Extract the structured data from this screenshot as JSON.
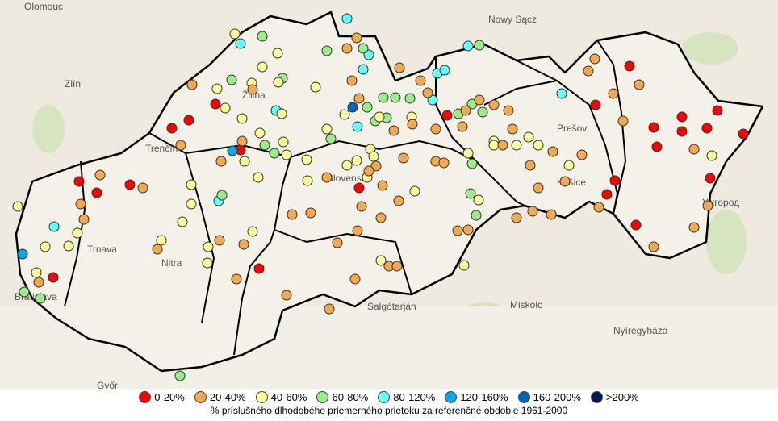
{
  "map": {
    "places": [
      "Olomouc",
      "Nowy Sącz",
      "Zlín",
      "Žilina",
      "Trenčín",
      "Prešov",
      "Košice",
      "Slovensko",
      "Ужгород",
      "Trnava",
      "Nitra",
      "Bratislava",
      "Salgótarján",
      "Miskolc",
      "Nyíregyháza",
      "Győr"
    ]
  },
  "legend": {
    "items": [
      {
        "label": "0-20%",
        "color": "#ff0000"
      },
      {
        "label": "20-40%",
        "color": "#f6a94c"
      },
      {
        "label": "40-60%",
        "color": "#ffff99"
      },
      {
        "label": "60-80%",
        "color": "#99ee88"
      },
      {
        "label": "80-120%",
        "color": "#66ffff"
      },
      {
        "label": "120-160%",
        "color": "#00aaee"
      },
      {
        "label": "160-200%",
        "color": "#0066bb"
      },
      {
        "label": ">200%",
        "color": "#001a5e"
      }
    ],
    "caption": "% príslušného dlhodobého priemerného prietoku za referenčné obdobie 1961-2000"
  }
}
